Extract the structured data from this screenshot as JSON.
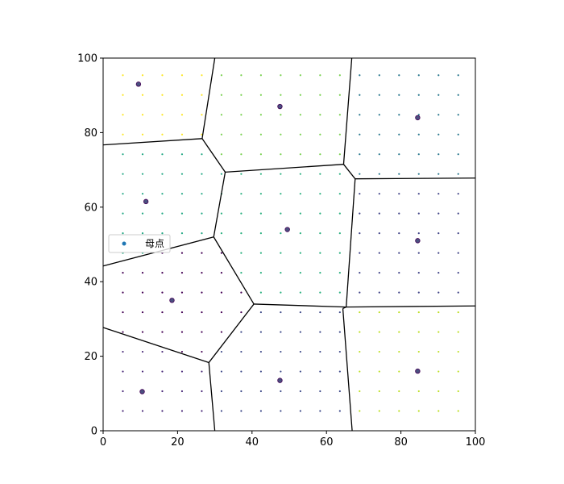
{
  "chart_data": {
    "type": "scatter",
    "title": "",
    "xlabel": "",
    "ylabel": "",
    "xlim": [
      0,
      100
    ],
    "ylim": [
      0,
      100
    ],
    "xticks": [
      "0",
      "20",
      "40",
      "60",
      "80",
      "100"
    ],
    "yticks": [
      "0",
      "20",
      "40",
      "60",
      "80",
      "100"
    ],
    "grid": false,
    "legend": {
      "placement": "center-left",
      "entries": [
        {
          "label": "母点",
          "color": "#1f77b4"
        }
      ]
    },
    "seeds": [
      {
        "x": 9.5,
        "y": 93
      },
      {
        "x": 47.5,
        "y": 87
      },
      {
        "x": 84.5,
        "y": 84
      },
      {
        "x": 11.5,
        "y": 61.5
      },
      {
        "x": 49.5,
        "y": 54
      },
      {
        "x": 84.5,
        "y": 51
      },
      {
        "x": 18.5,
        "y": 35
      },
      {
        "x": 10.5,
        "y": 10.5
      },
      {
        "x": 47.5,
        "y": 13.5
      },
      {
        "x": 84.5,
        "y": 16
      }
    ],
    "voronoi_edges": [
      [
        [
          0,
          76.7
        ],
        [
          26.6,
          78.4
        ]
      ],
      [
        [
          26.6,
          78.4
        ],
        [
          30,
          100
        ]
      ],
      [
        [
          26.6,
          78.4
        ],
        [
          32.8,
          69.4
        ]
      ],
      [
        [
          32.8,
          69.4
        ],
        [
          64.6,
          71.5
        ]
      ],
      [
        [
          64.6,
          71.5
        ],
        [
          66.8,
          100
        ]
      ],
      [
        [
          64.6,
          71.5
        ],
        [
          67.7,
          67.6
        ]
      ],
      [
        [
          67.7,
          67.6
        ],
        [
          100,
          67.8
        ]
      ],
      [
        [
          32.8,
          69.4
        ],
        [
          29.7,
          52.0
        ]
      ],
      [
        [
          0,
          44.2
        ],
        [
          29.7,
          52.0
        ]
      ],
      [
        [
          29.7,
          52.0
        ],
        [
          40.5,
          34.0
        ]
      ],
      [
        [
          67.7,
          67.6
        ],
        [
          65.3,
          33.2
        ]
      ],
      [
        [
          40.5,
          34.0
        ],
        [
          65.3,
          33.2
        ]
      ],
      [
        [
          65.3,
          33.2
        ],
        [
          100,
          33.5
        ]
      ],
      [
        [
          65.3,
          33.2
        ],
        [
          64.4,
          32.8
        ]
      ],
      [
        [
          64.4,
          32.8
        ],
        [
          66.9,
          0
        ]
      ],
      [
        [
          40.5,
          34.0
        ],
        [
          28.4,
          18.3
        ]
      ],
      [
        [
          0,
          27.7
        ],
        [
          28.4,
          18.3
        ]
      ],
      [
        [
          28.4,
          18.3
        ],
        [
          30.0,
          0
        ]
      ]
    ],
    "grid_points": {
      "x": [
        5.3,
        10.6,
        15.9,
        21.2,
        26.5,
        31.8,
        37.1,
        42.4,
        47.7,
        53.0,
        58.3,
        63.6,
        68.9,
        74.2,
        79.5,
        84.8,
        90.1,
        95.4
      ],
      "y": [
        5.3,
        10.6,
        15.9,
        21.2,
        26.5,
        31.8,
        37.1,
        42.4,
        47.7,
        53.0,
        58.3,
        63.6,
        68.9,
        74.2,
        79.5,
        84.8,
        90.1,
        95.4
      ],
      "cell_colors": [
        "#fde725",
        "#7ad151",
        "#2a788e",
        "#22a884",
        "#2ab07f",
        "#414487",
        "#440154",
        "#482878",
        "#3e4a89",
        "#bddf26"
      ]
    },
    "seed_edge_color": "#440154",
    "seed_fill_color": "#4a5080"
  }
}
